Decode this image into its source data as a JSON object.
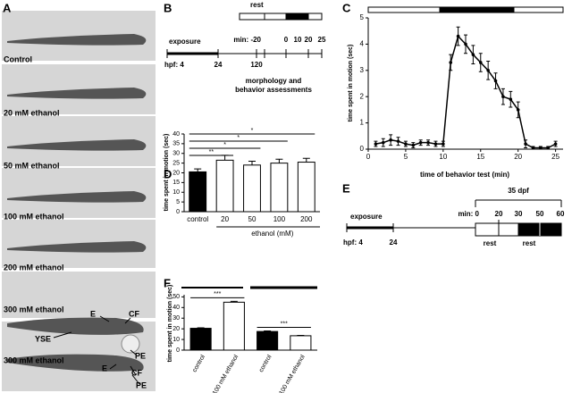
{
  "chart_data": [
    {
      "type": "line",
      "panel": "C",
      "y_label": "time spent in motion (sec)",
      "x_label": "time of behavior test (min)",
      "x": [
        1,
        2,
        3,
        4,
        5,
        6,
        7,
        8,
        9,
        10,
        11,
        12,
        13,
        14,
        15,
        16,
        17,
        18,
        19,
        20,
        21,
        22,
        23,
        24,
        25
      ],
      "values": [
        0.2,
        0.25,
        0.35,
        0.3,
        0.2,
        0.15,
        0.25,
        0.25,
        0.2,
        0.2,
        3.3,
        4.3,
        4.0,
        3.6,
        3.3,
        3.0,
        2.6,
        2.0,
        1.9,
        1.5,
        0.2,
        0.05,
        0.05,
        0.05,
        0.2
      ],
      "errors": [
        0.1,
        0.15,
        0.2,
        0.15,
        0.1,
        0.1,
        0.1,
        0.1,
        0.1,
        0.1,
        0.3,
        0.35,
        0.35,
        0.35,
        0.35,
        0.35,
        0.3,
        0.3,
        0.3,
        0.3,
        0.15,
        0.05,
        0.05,
        0.05,
        0.1
      ],
      "color": "#000000",
      "xlim": [
        0,
        26
      ],
      "xticks": [
        0,
        5,
        10,
        15,
        20,
        25
      ],
      "ylim": [
        0,
        5
      ],
      "yticks": [
        0,
        1,
        2,
        3,
        4,
        5
      ]
    },
    {
      "type": "bar",
      "panel": "D",
      "y_label": "time spent in motion (sec)",
      "x_label": "ethanol  (mM)",
      "categories": [
        "control",
        "20",
        "50",
        "100",
        "200"
      ],
      "values": [
        20.5,
        26.5,
        24,
        25,
        25.5
      ],
      "errors": [
        1.5,
        2.5,
        2,
        2,
        2
      ],
      "colors": [
        "#000000",
        "#ffffff",
        "#ffffff",
        "#ffffff",
        "#ffffff"
      ],
      "ylim": [
        0,
        40
      ],
      "yticks": [
        0,
        5,
        10,
        15,
        20,
        25,
        30,
        35,
        40
      ],
      "significance": [
        "**",
        "*",
        "*",
        "*"
      ]
    },
    {
      "type": "bar",
      "panel": "F",
      "y_label": "time spent in motion (sec)",
      "categories": [
        "control",
        "100 mM ethanol",
        "control",
        "100 mM ethanol"
      ],
      "values": [
        20.5,
        45,
        17.5,
        13.5
      ],
      "errors": [
        0.5,
        0.8,
        0.5,
        0.3
      ],
      "colors": [
        "#000000",
        "#ffffff",
        "#000000",
        "#ffffff"
      ],
      "ylim": [
        0,
        52
      ],
      "yticks": [
        0,
        10,
        20,
        30,
        40,
        50
      ],
      "significance": [
        "***",
        "***"
      ]
    }
  ],
  "panel_a": {
    "letter": "A",
    "labels": [
      "Control",
      "20 mM ethanol",
      "50 mM ethanol",
      "100 mM ethanol",
      "200 mM ethanol",
      "300 mM ethanol",
      "300 mM ethanol"
    ],
    "annotations": [
      "E",
      "CF",
      "YSE",
      "PE",
      "E",
      "CF",
      "PE"
    ]
  },
  "panel_b": {
    "letter": "B",
    "rest": "rest",
    "exposure": "exposure",
    "min": [
      "min: -20",
      "0",
      "10",
      "20",
      "25"
    ],
    "hpf": [
      "hpf: 4",
      "24",
      "120"
    ],
    "note": [
      "morphology and",
      "behavior assessments"
    ]
  },
  "panel_e": {
    "letter": "E",
    "age": "35 dpf",
    "exposure": "exposure",
    "min": [
      "min: 0",
      "20",
      "30",
      "50",
      "60"
    ],
    "hpf": [
      "hpf: 4",
      "24"
    ],
    "rest": [
      "rest",
      "rest"
    ]
  }
}
